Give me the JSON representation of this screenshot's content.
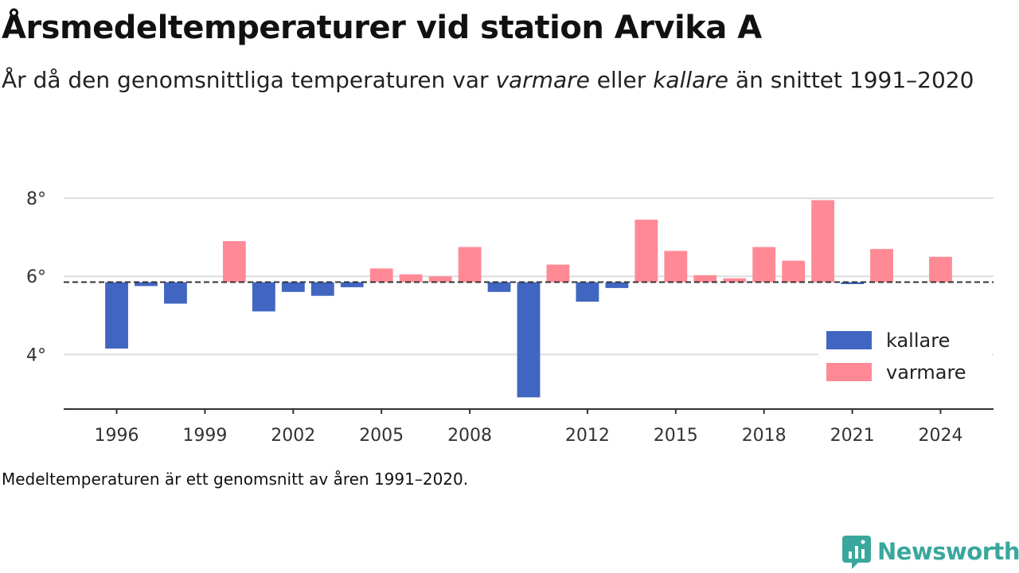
{
  "title": "Årsmedeltemperaturer vid station Arvika A",
  "subtitle": {
    "part1": "År då den genomsnittliga temperaturen var ",
    "warm_word": "varmare",
    "part2": " eller ",
    "cold_word": "kallare",
    "part3": " än snittet 1991–2020"
  },
  "footnote": "Medeltemperaturen är ett genomsnitt av åren 1991–2020.",
  "brand": "Newsworthy",
  "colors": {
    "kallare": "#4166c2",
    "varmare": "#ff8a96",
    "reference": "#333333",
    "grid": "#dddddd",
    "brand": "#3aa79c"
  },
  "chart_data": {
    "type": "bar",
    "baseline": 5.85,
    "ylim": [
      2.6,
      9.0
    ],
    "yticks": [
      4,
      6,
      8
    ],
    "ytick_labels": [
      "4°",
      "6°",
      "8°"
    ],
    "xlim": [
      1994.2,
      2025.8
    ],
    "xticks": [
      1996,
      1999,
      2002,
      2005,
      2008,
      2012,
      2015,
      2018,
      2021,
      2024
    ],
    "xtick_labels": [
      "1996",
      "1999",
      "2002",
      "2005",
      "2008",
      "2012",
      "2015",
      "2018",
      "2021",
      "2024"
    ],
    "legend": {
      "position": "bottom-right",
      "entries": [
        "kallare",
        "varmare"
      ]
    },
    "grid": true,
    "x": [
      1996,
      1997,
      1998,
      2000,
      2001,
      2002,
      2003,
      2004,
      2005,
      2006,
      2007,
      2008,
      2009,
      2010,
      2011,
      2012,
      2013,
      2014,
      2015,
      2016,
      2017,
      2018,
      2019,
      2020,
      2021,
      2022,
      2024
    ],
    "values": [
      4.15,
      5.75,
      5.3,
      6.9,
      5.1,
      5.6,
      5.5,
      5.72,
      6.2,
      6.05,
      6.0,
      6.75,
      5.6,
      2.9,
      6.3,
      5.35,
      5.7,
      7.45,
      6.65,
      6.03,
      5.95,
      6.75,
      6.4,
      7.95,
      5.8,
      6.7,
      6.5
    ]
  }
}
